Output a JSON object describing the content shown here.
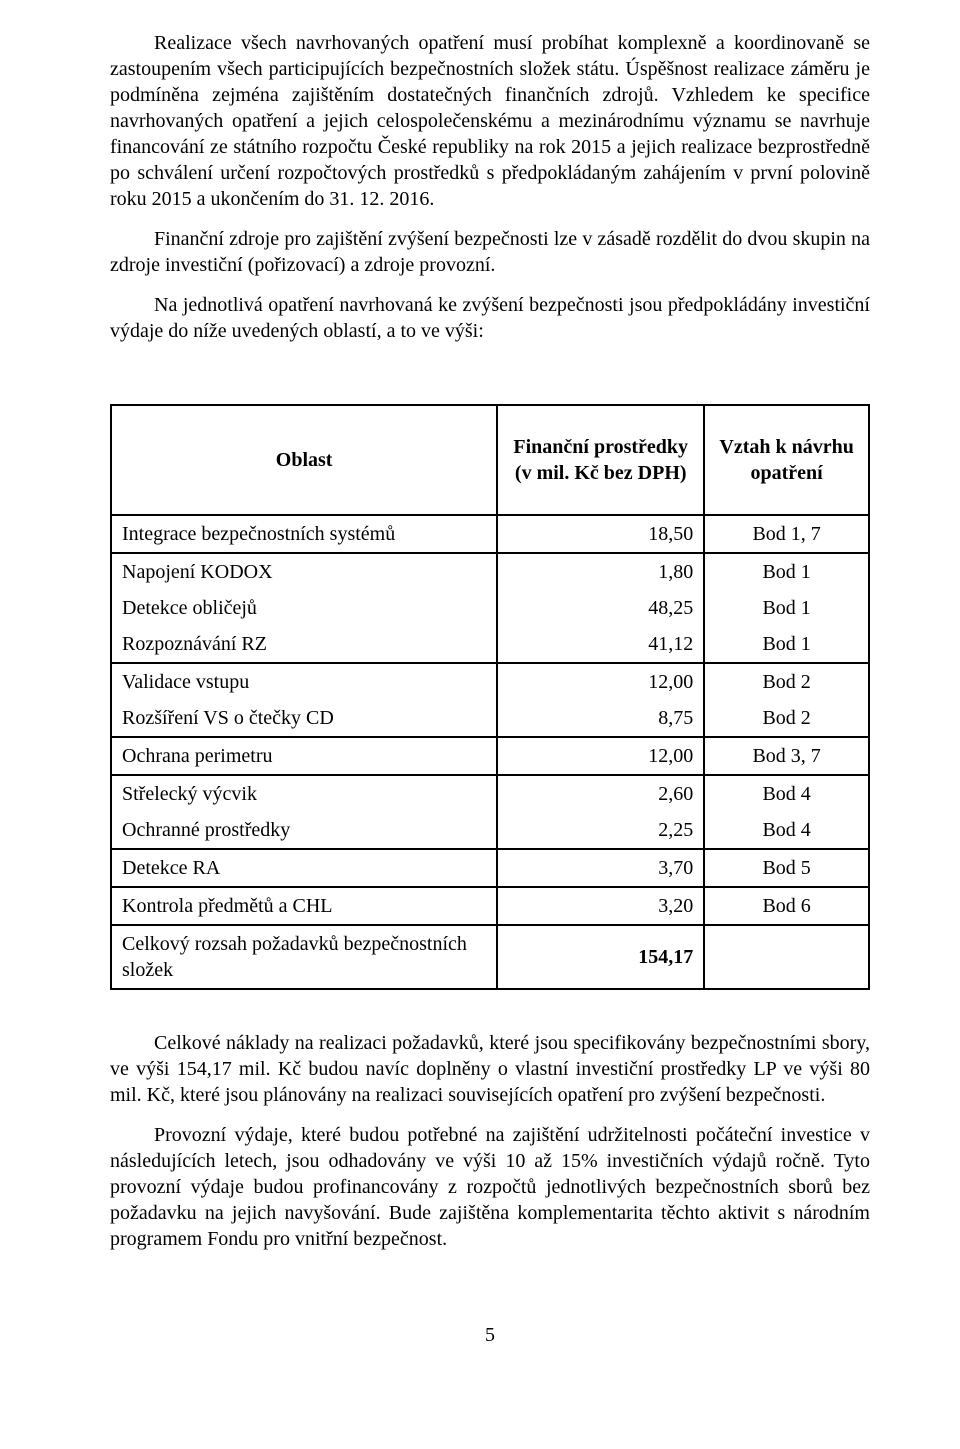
{
  "paragraphs": {
    "p1": "Realizace všech navrhovaných opatření musí probíhat komplexně a koordinovaně se zastoupením všech participujících bezpečnostních složek státu. Úspěšnost realizace záměru je podmíněna zejména zajištěním dostatečných finančních zdrojů. Vzhledem ke specifice navrhovaných opatření a jejich celospolečenskému a mezinárodnímu významu se navrhuje financování ze státního rozpočtu České republiky na rok 2015 a jejich realizace bezprostředně po schválení určení rozpočtových prostředků s předpokládaným zahájením v první polovině roku 2015 a ukončením do 31. 12. 2016.",
    "p2": "Finanční zdroje pro zajištění zvýšení bezpečnosti lze v zásadě rozdělit do dvou skupin na zdroje investiční (pořizovací) a zdroje provozní.",
    "p3": "Na jednotlivá opatření navrhovaná ke zvýšení bezpečnosti jsou předpokládány investiční výdaje do níže uvedených oblastí, a to ve výši:",
    "p4": "Celkové náklady na realizaci požadavků, které jsou specifikovány bezpečnostními sbory, ve výši 154,17 mil. Kč budou navíc doplněny o vlastní investiční prostředky LP ve výši 80 mil. Kč, které jsou plánovány na realizaci souvisejících opatření pro zvýšení bezpečnosti.",
    "p5": "Provozní výdaje, které budou potřebné na zajištění udržitelnosti počáteční investice v následujících letech, jsou odhadovány ve výši 10 až 15% investičních výdajů ročně. Tyto provozní výdaje budou profinancovány z rozpočtů jednotlivých bezpečnostních sborů bez požadavku na jejich navyšování. Bude zajištěna komplementarita těchto aktivit s národním programem Fondu pro vnitřní bezpečnost."
  },
  "table": {
    "type": "table",
    "columns": [
      {
        "label": "Oblast",
        "align": "left"
      },
      {
        "label_line1": "Finanční prostředky",
        "label_line2": "(v mil. Kč bez DPH)",
        "align": "right"
      },
      {
        "label_line1": "Vztah k návrhu",
        "label_line2": "opatření",
        "align": "center"
      }
    ],
    "rows": [
      {
        "c1": "Integrace bezpečnostních systémů",
        "c2": "18,50",
        "c3": "Bod 1, 7",
        "sep": true
      },
      {
        "c1": "Napojení KODOX",
        "c2": "1,80",
        "c3": "Bod 1",
        "sep": false
      },
      {
        "c1": "Detekce obličejů",
        "c2": "48,25",
        "c3": "Bod 1",
        "sep": false
      },
      {
        "c1": "Rozpoznávání RZ",
        "c2": "41,12",
        "c3": "Bod 1",
        "sep": true
      },
      {
        "c1": "Validace vstupu",
        "c2": "12,00",
        "c3": "Bod 2",
        "sep": false
      },
      {
        "c1": "Rozšíření VS o čtečky CD",
        "c2": "8,75",
        "c3": "Bod 2",
        "sep": true
      },
      {
        "c1": "Ochrana perimetru",
        "c2": "12,00",
        "c3": "Bod 3, 7",
        "sep": true
      },
      {
        "c1": "Střelecký výcvik",
        "c2": "2,60",
        "c3": "Bod 4",
        "sep": false
      },
      {
        "c1": "Ochranné prostředky",
        "c2": "2,25",
        "c3": "Bod 4",
        "sep": true
      },
      {
        "c1": "Detekce RA",
        "c2": "3,70",
        "c3": "Bod 5",
        "sep": true
      },
      {
        "c1": "Kontrola předmětů a CHL",
        "c2": "3,20",
        "c3": "Bod 6",
        "sep": true
      }
    ],
    "total": {
      "c1_line1": "Celkový rozsah požadavků bezpečnostních",
      "c1_line2": "složek",
      "c2": "154,17",
      "c3": ""
    },
    "colors": {
      "border": "#000000",
      "background": "#ffffff",
      "text": "#000000"
    },
    "font_family": "Times New Roman",
    "font_size_pt": 15
  },
  "page_number": "5"
}
